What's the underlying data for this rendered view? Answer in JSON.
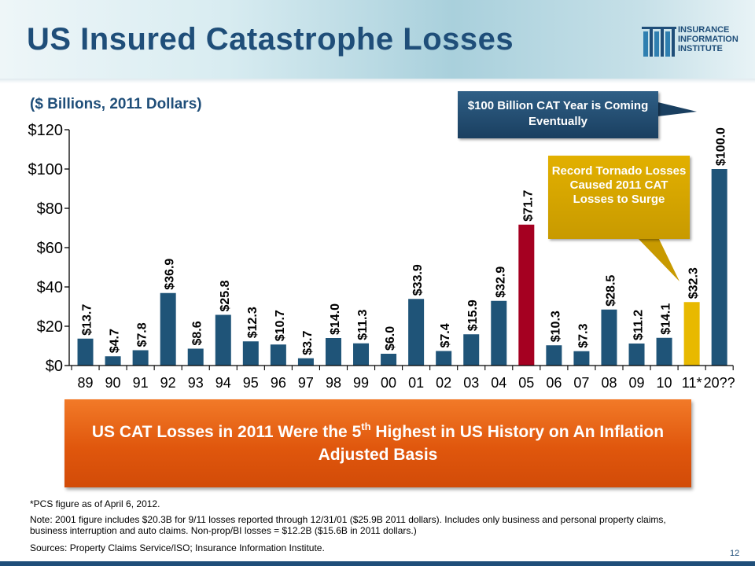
{
  "slide": {
    "title": "US Insured Catastrophe Losses",
    "subtitle": "($ Billions, 2011 Dollars)",
    "page_number": "12"
  },
  "logo": {
    "lines": [
      "INSURANCE",
      "INFORMATION",
      "INSTITUTE"
    ],
    "icon": "iii-columns-logo-icon"
  },
  "callouts": {
    "cat_year": "$100 Billion CAT Year is Coming Eventually",
    "tornado": "Record Tornado Losses Caused 2011 CAT Losses to Surge"
  },
  "banner": {
    "prefix": "US CAT Losses in 2011 Were the 5",
    "sup": "th",
    "suffix": " Highest in US History on An Inflation Adjusted Basis"
  },
  "notes": {
    "pcs": "*PCS figure as of April 6, 2012.",
    "main": "Note: 2001 figure includes $20.3B for 9/11 losses reported through 12/31/01 ($25.9B 2011 dollars). Includes only business and personal property claims, business interruption and auto claims. Non-prop/BI losses = $12.2B ($15.6B in 2011 dollars.)",
    "sources": "Sources: Property Claims Service/ISO;  Insurance Information Institute."
  },
  "colors": {
    "default_bar": "#1f5478",
    "highlight_2005": "#a50021",
    "highlight_2011": "#e8b900",
    "title": "#1f4e79"
  },
  "chart_data": {
    "type": "bar",
    "categories": [
      "89",
      "90",
      "91",
      "92",
      "93",
      "94",
      "95",
      "96",
      "97",
      "98",
      "99",
      "00",
      "01",
      "02",
      "03",
      "04",
      "05",
      "06",
      "07",
      "08",
      "09",
      "10",
      "11*",
      "20??"
    ],
    "values": [
      13.7,
      4.7,
      7.8,
      36.9,
      8.6,
      25.8,
      12.3,
      10.7,
      3.7,
      14.0,
      11.3,
      6.0,
      33.9,
      7.4,
      15.9,
      32.9,
      71.7,
      10.3,
      7.3,
      28.5,
      11.2,
      14.1,
      32.3,
      100.0
    ],
    "data_labels": [
      "$13.7",
      "$4.7",
      "$7.8",
      "$36.9",
      "$8.6",
      "$25.8",
      "$12.3",
      "$10.7",
      "$3.7",
      "$14.0",
      "$11.3",
      "$6.0",
      "$33.9",
      "$7.4",
      "$15.9",
      "$32.9",
      "$71.7",
      "$10.3",
      "$7.3",
      "$28.5",
      "$11.2",
      "$14.1",
      "$32.3",
      "$100.0"
    ],
    "bar_colors": {
      "05": "#a50021",
      "11*": "#e8b900"
    },
    "ylim": [
      0,
      120
    ],
    "yticks": [
      0,
      20,
      40,
      60,
      80,
      100,
      120
    ],
    "ytick_labels": [
      "$0",
      "$20",
      "$40",
      "$60",
      "$80",
      "$100",
      "$120"
    ],
    "title": "",
    "xlabel": "",
    "ylabel": "",
    "grid": false,
    "legend": "none"
  }
}
